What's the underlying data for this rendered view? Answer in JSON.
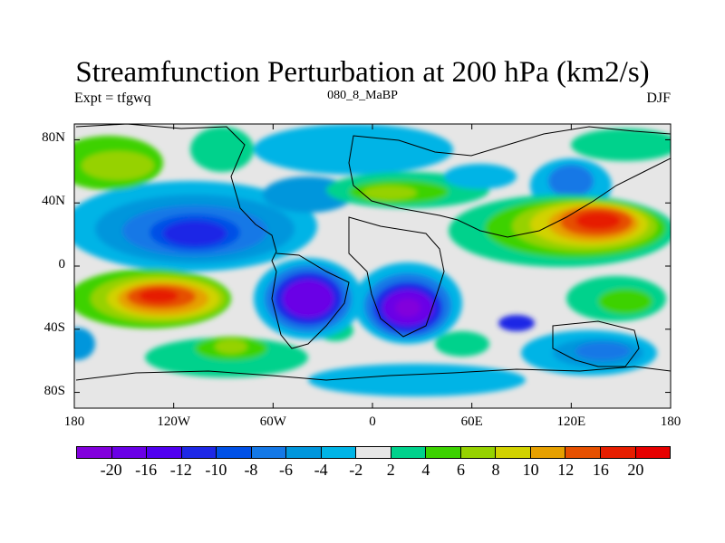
{
  "title": "Streamfunction Perturbation at 200 hPa (km2/s)",
  "left_label": "Expt = tfgwq",
  "center_label": "080_8_MaBP",
  "right_label": "DJF",
  "y_axis": {
    "ticks": [
      {
        "value": 80,
        "label": "80N"
      },
      {
        "value": 40,
        "label": "40N"
      },
      {
        "value": 0,
        "label": "0"
      },
      {
        "value": -40,
        "label": "40S"
      },
      {
        "value": -80,
        "label": "80S"
      }
    ]
  },
  "x_axis": {
    "ticks": [
      {
        "value": -180,
        "label": "180"
      },
      {
        "value": -120,
        "label": "120W"
      },
      {
        "value": -60,
        "label": "60W"
      },
      {
        "value": 0,
        "label": "0"
      },
      {
        "value": 60,
        "label": "60E"
      },
      {
        "value": 120,
        "label": "120E"
      },
      {
        "value": 180,
        "label": "180"
      }
    ]
  },
  "colorbar": {
    "colors": [
      "#8200dc",
      "#6a00e6",
      "#5000f0",
      "#1e28e6",
      "#0050e6",
      "#1478e6",
      "#0096dc",
      "#00b4e6",
      "#e6e6e6",
      "#00d28c",
      "#3cd200",
      "#96d200",
      "#d2d200",
      "#e6a000",
      "#e65000",
      "#e61e00",
      "#e60000"
    ],
    "labels": [
      "-20",
      "-16",
      "-12",
      "-10",
      "-8",
      "-6",
      "-4",
      "-2",
      "2",
      "4",
      "6",
      "8",
      "10",
      "12",
      "16",
      "20"
    ]
  },
  "colors": {
    "background_field": "#e6e6e6",
    "coast": "#000000"
  }
}
